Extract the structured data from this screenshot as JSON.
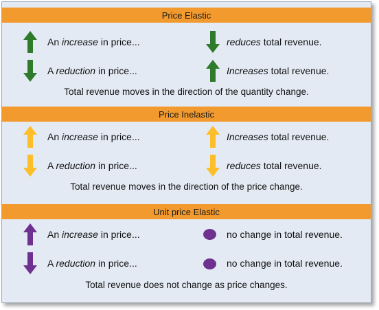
{
  "colors": {
    "header_band": "#f29a2e",
    "panel_bg": "#e3eaf4",
    "green": "#2f7a2b",
    "yellow": "#fcbf2a",
    "purple": "#6f3190"
  },
  "sections": [
    {
      "title": "Price Elastic",
      "rows": [
        {
          "left_icon": "arrow-up-icon",
          "left_pre": "An ",
          "left_em": "increase",
          "left_post": " in price...",
          "right_icon": "arrow-down-icon",
          "right_pre": "",
          "right_em": "reduces",
          "right_post": " total revenue."
        },
        {
          "left_icon": "arrow-down-icon",
          "left_pre": "A ",
          "left_em": "reduction",
          "left_post": " in price...",
          "right_icon": "arrow-up-icon",
          "right_pre": "",
          "right_em": "Increases",
          "right_post": " total revenue."
        }
      ],
      "summary": "Total revenue moves in the direction of the quantity change."
    },
    {
      "title": "Price Inelastic",
      "rows": [
        {
          "left_icon": "arrow-up-icon",
          "left_pre": "An ",
          "left_em": "increase",
          "left_post": " in price...",
          "right_icon": "arrow-up-icon",
          "right_pre": "",
          "right_em": "Increases",
          "right_post": " total revenue."
        },
        {
          "left_icon": "arrow-down-icon",
          "left_pre": "A ",
          "left_em": "reduction",
          "left_post": " in price...",
          "right_icon": "arrow-down-icon",
          "right_pre": "",
          "right_em": "reduces",
          "right_post": " total revenue."
        }
      ],
      "summary": "Total revenue moves in the direction of the price change."
    },
    {
      "title": "Unit price Elastic",
      "rows": [
        {
          "left_icon": "arrow-up-icon",
          "left_pre": "An ",
          "left_em": "increase",
          "left_post": " in price...",
          "right_icon": "circle-icon",
          "right_pre": "no change in total revenue.",
          "right_em": "",
          "right_post": ""
        },
        {
          "left_icon": "arrow-down-icon",
          "left_pre": "A ",
          "left_em": "reduction",
          "left_post": " in price...",
          "right_icon": "circle-icon",
          "right_pre": "no change in total revenue.",
          "right_em": "",
          "right_post": ""
        }
      ],
      "summary": "Total revenue does not change as price changes."
    }
  ]
}
